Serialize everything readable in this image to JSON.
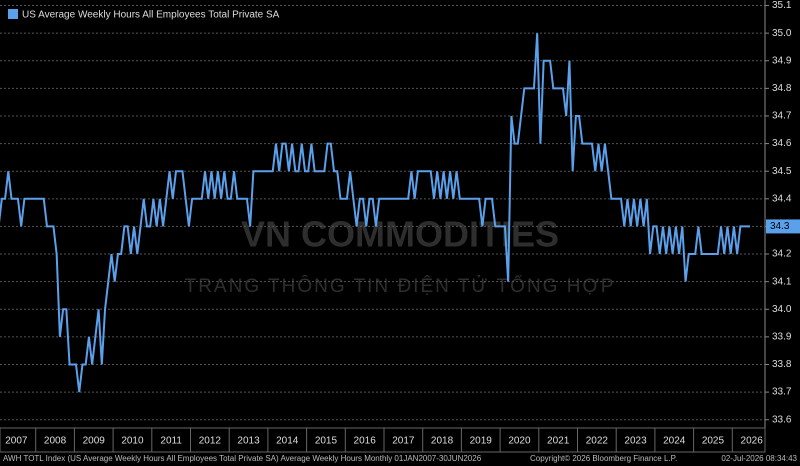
{
  "chart_data": {
    "type": "line",
    "title": "US Average Weekly Hours All Employees Total Private SA",
    "footer": "AWH TOTL Index (US Average Weekly Hours All Employees Total Private SA) Average Weekly Hours Monthly 01JAN2007-30JUN2026",
    "copyright": "Copyright© 2026 Bloomberg Finance L.P.",
    "timestamp": "02-Jul-2026 08:34:43",
    "watermark": "VN COMMODITIES",
    "watermark_subtitle": "TRANG THÔNG TIN ĐIỆN TỬ TỔNG HỢP",
    "legend": "top-left",
    "grid": true,
    "x": [
      "2007",
      null,
      null,
      null,
      null,
      null,
      null,
      null,
      null,
      null,
      null,
      null,
      "2008",
      null,
      null,
      null,
      null,
      null,
      null,
      null,
      null,
      null,
      null,
      null,
      "2009",
      null,
      null,
      null,
      null,
      null,
      null,
      null,
      null,
      null,
      null,
      null,
      "2010",
      null,
      null,
      null,
      null,
      null,
      null,
      null,
      null,
      null,
      null,
      null,
      "2011",
      null,
      null,
      null,
      null,
      null,
      null,
      null,
      null,
      null,
      null,
      null,
      "2012",
      null,
      null,
      null,
      null,
      null,
      null,
      null,
      null,
      null,
      null,
      null,
      "2013",
      null,
      null,
      null,
      null,
      null,
      null,
      null,
      null,
      null,
      null,
      null,
      "2014",
      null,
      null,
      null,
      null,
      null,
      null,
      null,
      null,
      null,
      null,
      null,
      "2015",
      null,
      null,
      null,
      null,
      null,
      null,
      null,
      null,
      null,
      null,
      null,
      "2016",
      null,
      null,
      null,
      null,
      null,
      null,
      null,
      null,
      null,
      null,
      null,
      "2017",
      null,
      null,
      null,
      null,
      null,
      null,
      null,
      null,
      null,
      null,
      null,
      "2018",
      null,
      null,
      null,
      null,
      null,
      null,
      null,
      null,
      null,
      null,
      null,
      "2019",
      null,
      null,
      null,
      null,
      null,
      null,
      null,
      null,
      null,
      null,
      null,
      "2020",
      null,
      null,
      null,
      null,
      null,
      null,
      null,
      null,
      null,
      null,
      null,
      "2021",
      null,
      null,
      null,
      null,
      null,
      null,
      null,
      null,
      null,
      null,
      null,
      "2022",
      null,
      null,
      null,
      null,
      null,
      null,
      null,
      null,
      null,
      null,
      null,
      "2023",
      null,
      null,
      null,
      null,
      null,
      null,
      null,
      null,
      null,
      null,
      null,
      "2024",
      null,
      null,
      null,
      null,
      null,
      null,
      null,
      null,
      null,
      null,
      null,
      "2025",
      null,
      null,
      null,
      null,
      null,
      null,
      null,
      null,
      null,
      null,
      null,
      "2026",
      null,
      null,
      null,
      null,
      null
    ],
    "series": [
      {
        "name": "US Average Weekly Hours All Employees Total Private SA",
        "color": "#5aa0ea",
        "values": [
          34.3,
          34.4,
          34.4,
          34.5,
          34.4,
          34.4,
          34.4,
          34.3,
          34.4,
          34.4,
          34.4,
          34.4,
          34.4,
          34.4,
          34.4,
          34.3,
          34.3,
          34.3,
          34.2,
          33.9,
          34.0,
          34.0,
          33.8,
          33.8,
          33.8,
          33.7,
          33.8,
          33.8,
          33.9,
          33.8,
          33.9,
          34.0,
          33.8,
          34.0,
          34.1,
          34.2,
          34.1,
          34.2,
          34.2,
          34.3,
          34.3,
          34.2,
          34.3,
          34.2,
          34.3,
          34.4,
          34.3,
          34.3,
          34.4,
          34.3,
          34.4,
          34.3,
          34.4,
          34.5,
          34.4,
          34.5,
          34.5,
          34.5,
          34.4,
          34.3,
          34.4,
          34.4,
          34.4,
          34.4,
          34.5,
          34.4,
          34.5,
          34.4,
          34.5,
          34.4,
          34.5,
          34.4,
          34.4,
          34.5,
          34.4,
          34.4,
          34.4,
          34.4,
          34.3,
          34.5,
          34.5,
          34.5,
          34.5,
          34.5,
          34.5,
          34.5,
          34.6,
          34.5,
          34.6,
          34.6,
          34.5,
          34.6,
          34.5,
          34.5,
          34.6,
          34.5,
          34.5,
          34.6,
          34.5,
          34.5,
          34.5,
          34.5,
          34.6,
          34.6,
          34.5,
          34.5,
          34.4,
          34.4,
          34.4,
          34.5,
          34.4,
          34.3,
          34.4,
          34.4,
          34.3,
          34.4,
          34.4,
          34.3,
          34.4,
          34.4,
          34.4,
          34.4,
          34.4,
          34.4,
          34.4,
          34.4,
          34.4,
          34.4,
          34.5,
          34.4,
          34.5,
          34.5,
          34.5,
          34.5,
          34.5,
          34.4,
          34.5,
          34.4,
          34.5,
          34.4,
          34.5,
          34.4,
          34.5,
          34.4,
          34.4,
          34.4,
          34.4,
          34.4,
          34.4,
          34.4,
          34.3,
          34.4,
          34.4,
          34.4,
          34.3,
          34.3,
          34.3,
          34.3,
          34.1,
          34.7,
          34.6,
          34.6,
          34.7,
          34.8,
          34.8,
          34.8,
          34.8,
          35.0,
          34.6,
          34.9,
          34.9,
          34.9,
          34.8,
          34.8,
          34.8,
          34.8,
          34.7,
          34.9,
          34.5,
          34.7,
          34.7,
          34.6,
          34.6,
          34.6,
          34.6,
          34.5,
          34.6,
          34.5,
          34.6,
          34.5,
          34.4,
          34.4,
          34.4,
          34.4,
          34.3,
          34.4,
          34.3,
          34.4,
          34.3,
          34.4,
          34.3,
          34.4,
          34.2,
          34.3,
          34.3,
          34.2,
          34.3,
          34.2,
          34.3,
          34.2,
          34.3,
          34.2,
          34.3,
          34.1,
          34.2,
          34.2,
          34.2,
          34.3,
          34.2,
          34.2,
          34.2,
          34.2,
          34.2,
          34.2,
          34.3,
          34.2,
          34.3,
          34.2,
          34.3,
          34.2,
          34.3,
          34.3,
          34.3,
          34.3
        ]
      }
    ],
    "ylim": [
      33.57,
      35.12
    ],
    "yticks": [
      33.6,
      33.7,
      33.8,
      33.9,
      {
        "value": 34,
        "label": "34.0"
      },
      34.1,
      34.2,
      34.3,
      34.4,
      34.5,
      34.6,
      34.7,
      34.8,
      34.9,
      {
        "value": 35,
        "label": "35.0"
      },
      35.1
    ]
  }
}
